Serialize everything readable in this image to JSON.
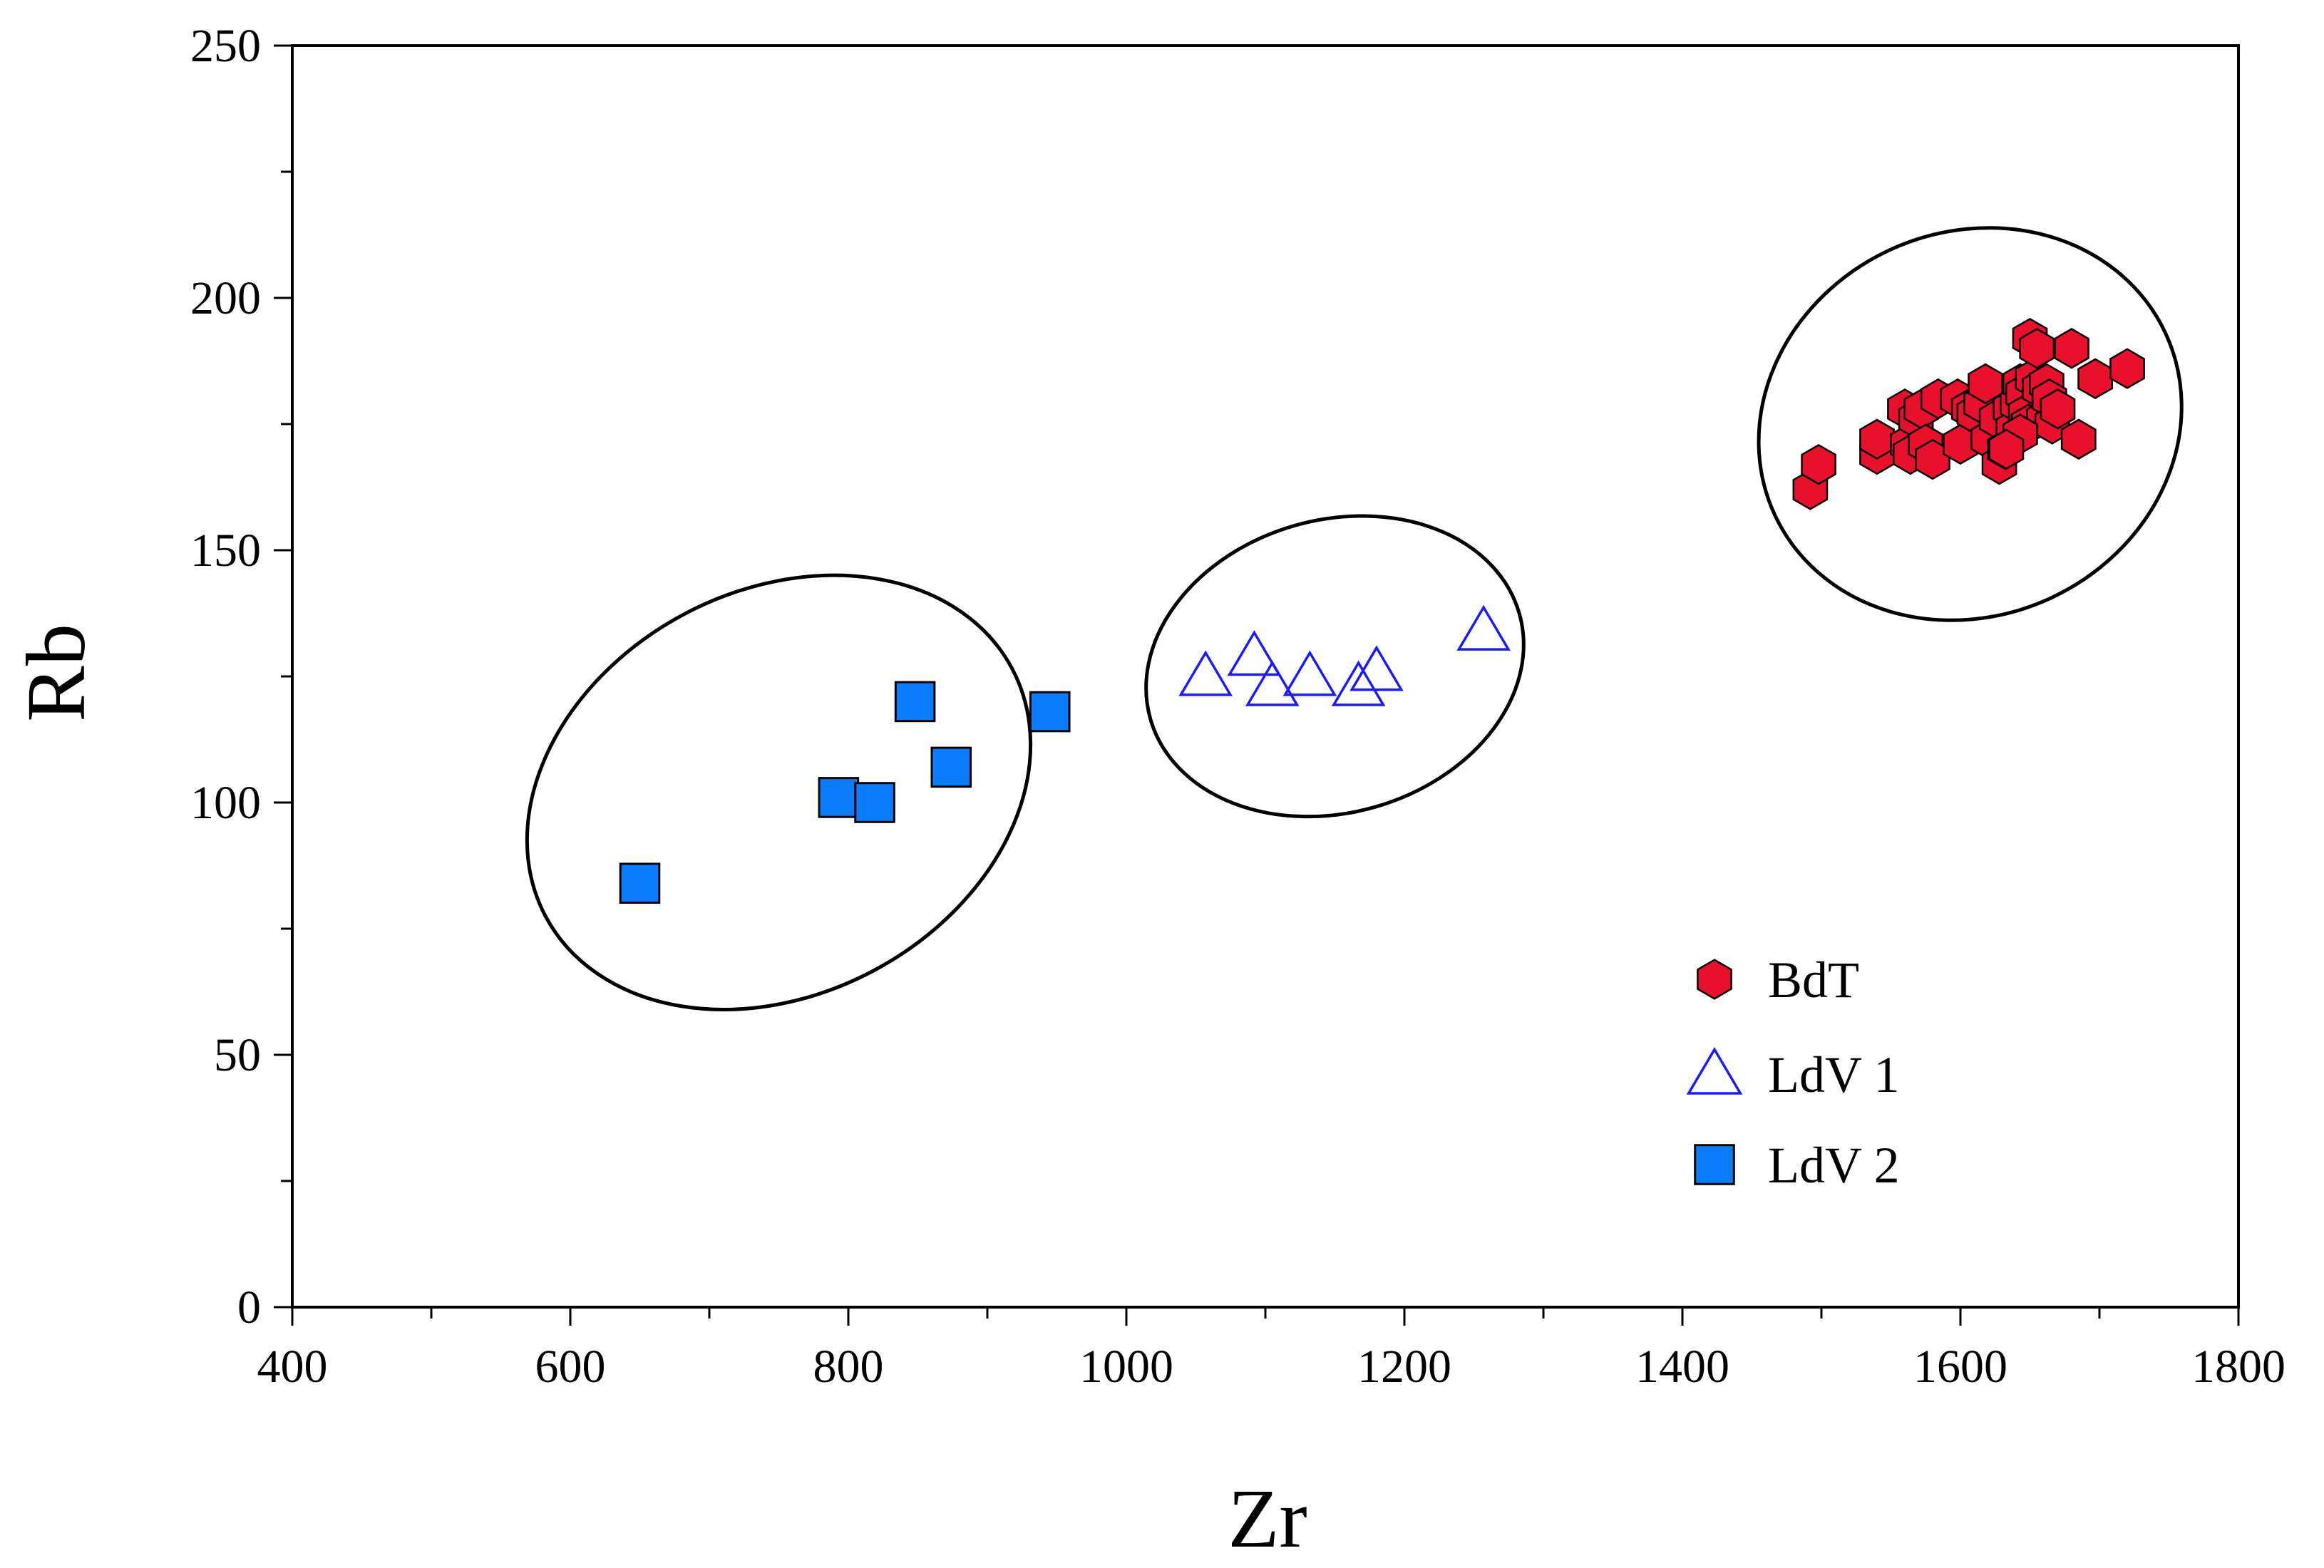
{
  "chart_data": {
    "type": "scatter",
    "title": "",
    "xlabel": "Zr",
    "ylabel": "Rb",
    "xlim": [
      400,
      1800
    ],
    "ylim": [
      0,
      250
    ],
    "x_ticks": [
      400,
      600,
      800,
      1000,
      1200,
      1400,
      1600,
      1800
    ],
    "y_ticks": [
      0,
      50,
      100,
      150,
      200,
      250
    ],
    "x_minor_step": 100,
    "y_minor_step": 25,
    "grid": false,
    "legend_position": "bottom-right",
    "series": [
      {
        "name": "BdT",
        "marker": "hexagon",
        "color": "#e8102a",
        "stroke": "#000000",
        "points": [
          [
            1492,
            162
          ],
          [
            1498,
            167
          ],
          [
            1540,
            169
          ],
          [
            1540,
            172
          ],
          [
            1560,
            178
          ],
          [
            1562,
            171
          ],
          [
            1564,
            169
          ],
          [
            1568,
            176
          ],
          [
            1572,
            178
          ],
          [
            1575,
            171
          ],
          [
            1580,
            168
          ],
          [
            1584,
            180
          ],
          [
            1598,
            180
          ],
          [
            1600,
            171
          ],
          [
            1606,
            178
          ],
          [
            1610,
            177
          ],
          [
            1615,
            179
          ],
          [
            1618,
            183
          ],
          [
            1620,
            172
          ],
          [
            1626,
            176
          ],
          [
            1628,
            167
          ],
          [
            1632,
            170
          ],
          [
            1636,
            178
          ],
          [
            1638,
            174
          ],
          [
            1641,
            179
          ],
          [
            1643,
            183
          ],
          [
            1645,
            181
          ],
          [
            1647,
            177
          ],
          [
            1649,
            175
          ],
          [
            1650,
            192
          ],
          [
            1652,
            184
          ],
          [
            1655,
            190
          ],
          [
            1657,
            182
          ],
          [
            1660,
            176
          ],
          [
            1662,
            183
          ],
          [
            1664,
            180
          ],
          [
            1666,
            175
          ],
          [
            1670,
            178
          ],
          [
            1680,
            190
          ],
          [
            1685,
            172
          ],
          [
            1697,
            184
          ],
          [
            1720,
            186
          ],
          [
            1643,
            173
          ],
          [
            1633,
            170
          ]
        ]
      },
      {
        "name": "LdV 1",
        "marker": "triangle-open",
        "color": "#1a1aff",
        "points": [
          [
            1057,
            125
          ],
          [
            1092,
            129
          ],
          [
            1105,
            123
          ],
          [
            1132,
            125
          ],
          [
            1167,
            123
          ],
          [
            1180,
            126
          ],
          [
            1257,
            134
          ]
        ]
      },
      {
        "name": "LdV 2",
        "marker": "square",
        "color": "#0a7dff",
        "stroke": "#000000",
        "points": [
          [
            650,
            84
          ],
          [
            793,
            101
          ],
          [
            819,
            100
          ],
          [
            848,
            120
          ],
          [
            874,
            107
          ],
          [
            945,
            118
          ]
        ]
      }
    ],
    "ellipses": [
      {
        "group": "LdV 2",
        "cx": 750,
        "cy": 102,
        "rx": 190,
        "ry": 40,
        "angle_deg": -28
      },
      {
        "group": "LdV 1",
        "cx": 1150,
        "cy": 127,
        "rx": 138,
        "ry": 29,
        "angle_deg": -16
      },
      {
        "group": "BdT",
        "cx": 1607,
        "cy": 175,
        "rx": 155,
        "ry": 38,
        "angle_deg": -25
      }
    ]
  }
}
